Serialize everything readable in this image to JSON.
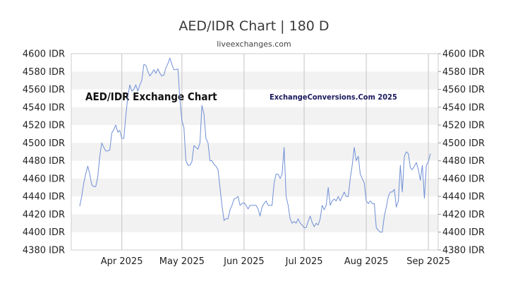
{
  "chart_data": {
    "type": "line",
    "title": "AED/IDR Chart | 180 D",
    "subtitle": "liveexchanges.com",
    "annotations": [
      "AED/IDR Exchange Chart",
      "ExchangeConversions.Com 2025"
    ],
    "ylim": [
      4380,
      4600
    ],
    "yticks": [
      4380,
      4400,
      4420,
      4440,
      4460,
      4480,
      4500,
      4520,
      4540,
      4560,
      4580,
      4600
    ],
    "ytick_labels": [
      "4380 IDR",
      "4400 IDR",
      "4420 IDR",
      "4440 IDR",
      "4460 IDR",
      "4480 IDR",
      "4500 IDR",
      "4520 IDR",
      "4540 IDR",
      "4560 IDR",
      "4580 IDR",
      "4600 IDR"
    ],
    "xlim": [
      0,
      180
    ],
    "xticks": [
      {
        "label": "Apr 2025",
        "x": 21
      },
      {
        "label": "May 2025",
        "x": 51
      },
      {
        "label": "Jun 2025",
        "x": 82
      },
      {
        "label": "Jul 2025",
        "x": 112
      },
      {
        "label": "Aug 2025",
        "x": 143
      },
      {
        "label": "Sep 2025",
        "x": 174
      }
    ],
    "grid": "horizontal bands, monthly vertical lines",
    "color": "#6f8fd6",
    "series": [
      {
        "values": [
          [
            0,
            4429
          ],
          [
            1,
            4440
          ],
          [
            2,
            4455
          ],
          [
            3,
            4465
          ],
          [
            4,
            4474
          ],
          [
            5,
            4465
          ],
          [
            6,
            4453
          ],
          [
            7,
            4451
          ],
          [
            8,
            4451
          ],
          [
            9,
            4462
          ],
          [
            10,
            4485
          ],
          [
            11,
            4500
          ],
          [
            12,
            4495
          ],
          [
            13,
            4491
          ],
          [
            14,
            4491
          ],
          [
            15,
            4492
          ],
          [
            16,
            4511
          ],
          [
            17,
            4515
          ],
          [
            18,
            4520
          ],
          [
            19,
            4512
          ],
          [
            20,
            4514
          ],
          [
            21,
            4505
          ],
          [
            22,
            4505
          ],
          [
            23,
            4530
          ],
          [
            24,
            4552
          ],
          [
            25,
            4565
          ],
          [
            26,
            4558
          ],
          [
            27,
            4560
          ],
          [
            28,
            4565
          ],
          [
            29,
            4558
          ],
          [
            30,
            4565
          ],
          [
            31,
            4570
          ],
          [
            32,
            4588
          ],
          [
            33,
            4587
          ],
          [
            34,
            4580
          ],
          [
            35,
            4575
          ],
          [
            36,
            4578
          ],
          [
            37,
            4582
          ],
          [
            38,
            4578
          ],
          [
            39,
            4583
          ],
          [
            40,
            4578
          ],
          [
            41,
            4575
          ],
          [
            42,
            4576
          ],
          [
            43,
            4584
          ],
          [
            44,
            4589
          ],
          [
            45,
            4595
          ],
          [
            46,
            4588
          ],
          [
            47,
            4582
          ],
          [
            48,
            4582
          ],
          [
            49,
            4583
          ],
          [
            50,
            4548
          ],
          [
            51,
            4525
          ],
          [
            52,
            4517
          ],
          [
            53,
            4480
          ],
          [
            54,
            4475
          ],
          [
            55,
            4475
          ],
          [
            56,
            4479
          ],
          [
            57,
            4497
          ],
          [
            58,
            4495
          ],
          [
            59,
            4493
          ],
          [
            60,
            4500
          ],
          [
            61,
            4542
          ],
          [
            62,
            4532
          ],
          [
            63,
            4505
          ],
          [
            64,
            4500
          ],
          [
            65,
            4480
          ],
          [
            66,
            4480
          ],
          [
            67,
            4476
          ],
          [
            68,
            4474
          ],
          [
            69,
            4470
          ],
          [
            70,
            4450
          ],
          [
            71,
            4430
          ],
          [
            72,
            4413
          ],
          [
            73,
            4415
          ],
          [
            74,
            4415
          ],
          [
            75,
            4425
          ],
          [
            76,
            4430
          ],
          [
            77,
            4437
          ],
          [
            78,
            4438
          ],
          [
            79,
            4440
          ],
          [
            80,
            4430
          ],
          [
            81,
            4432
          ],
          [
            82,
            4433
          ],
          [
            83,
            4430
          ],
          [
            84,
            4426
          ],
          [
            85,
            4430
          ],
          [
            86,
            4430
          ],
          [
            87,
            4430
          ],
          [
            88,
            4430
          ],
          [
            89,
            4426
          ],
          [
            90,
            4418
          ],
          [
            91,
            4428
          ],
          [
            92,
            4432
          ],
          [
            93,
            4435
          ],
          [
            94,
            4430
          ],
          [
            95,
            4430
          ],
          [
            96,
            4430
          ],
          [
            97,
            4455
          ],
          [
            98,
            4465
          ],
          [
            99,
            4465
          ],
          [
            100,
            4460
          ],
          [
            101,
            4465
          ],
          [
            102,
            4495
          ],
          [
            103,
            4440
          ],
          [
            104,
            4430
          ],
          [
            105,
            4415
          ],
          [
            106,
            4410
          ],
          [
            107,
            4412
          ],
          [
            108,
            4410
          ],
          [
            109,
            4415
          ],
          [
            110,
            4410
          ],
          [
            111,
            4408
          ],
          [
            112,
            4405
          ],
          [
            113,
            4405
          ],
          [
            114,
            4412
          ],
          [
            115,
            4418
          ],
          [
            116,
            4411
          ],
          [
            117,
            4406
          ],
          [
            118,
            4410
          ],
          [
            119,
            4408
          ],
          [
            120,
            4415
          ],
          [
            121,
            4430
          ],
          [
            122,
            4425
          ],
          [
            123,
            4430
          ],
          [
            124,
            4450
          ],
          [
            125,
            4430
          ],
          [
            126,
            4435
          ],
          [
            127,
            4437
          ],
          [
            128,
            4435
          ],
          [
            129,
            4440
          ],
          [
            130,
            4435
          ],
          [
            131,
            4440
          ],
          [
            132,
            4445
          ],
          [
            133,
            4440
          ],
          [
            134,
            4440
          ],
          [
            135,
            4460
          ],
          [
            136,
            4475
          ],
          [
            137,
            4495
          ],
          [
            138,
            4480
          ],
          [
            139,
            4485
          ],
          [
            140,
            4465
          ],
          [
            141,
            4460
          ],
          [
            142,
            4455
          ],
          [
            143,
            4435
          ],
          [
            144,
            4432
          ],
          [
            145,
            4435
          ],
          [
            146,
            4432
          ],
          [
            147,
            4432
          ],
          [
            148,
            4405
          ],
          [
            149,
            4402
          ],
          [
            150,
            4400
          ],
          [
            151,
            4400
          ],
          [
            152,
            4418
          ],
          [
            153,
            4428
          ],
          [
            154,
            4440
          ],
          [
            155,
            4445
          ],
          [
            156,
            4445
          ],
          [
            157,
            4448
          ],
          [
            158,
            4428
          ],
          [
            159,
            4435
          ],
          [
            160,
            4475
          ],
          [
            161,
            4445
          ],
          [
            162,
            4485
          ],
          [
            163,
            4490
          ],
          [
            164,
            4488
          ],
          [
            165,
            4472
          ],
          [
            166,
            4470
          ],
          [
            167,
            4474
          ],
          [
            168,
            4478
          ],
          [
            169,
            4470
          ],
          [
            170,
            4458
          ],
          [
            171,
            4475
          ],
          [
            172,
            4438
          ],
          [
            173,
            4475
          ],
          [
            174,
            4479
          ],
          [
            175,
            4488
          ]
        ]
      }
    ]
  }
}
